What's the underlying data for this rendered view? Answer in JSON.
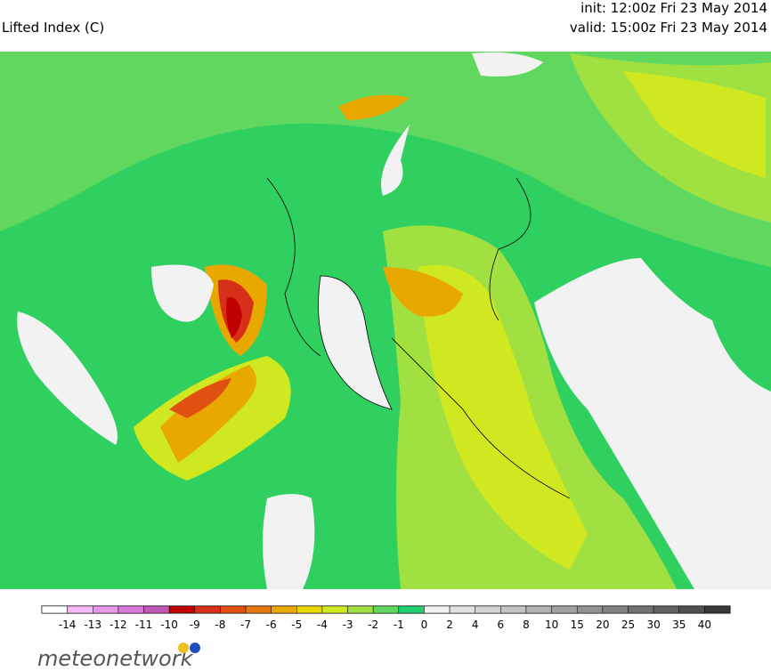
{
  "header": {
    "title": "Lifted Index (C)",
    "init": "init: 12:00z Fri 23 May 2014",
    "valid": "valid: 15:00z Fri 23 May 2014"
  },
  "legend": {
    "labels": [
      "-14",
      "-13",
      "-12",
      "-11",
      "-10",
      "-9",
      "-8",
      "-7",
      "-6",
      "-5",
      "-4",
      "-3",
      "-2",
      "-1",
      "0",
      "2",
      "4",
      "6",
      "8",
      "10",
      "15",
      "20",
      "25",
      "30",
      "35",
      "40"
    ],
    "colors": [
      "#ffffff",
      "#f8b8f8",
      "#e898e8",
      "#d878d8",
      "#c058b8",
      "#c00000",
      "#d83018",
      "#e05010",
      "#e87810",
      "#e8a800",
      "#e8d800",
      "#d0e820",
      "#a0e040",
      "#60d860",
      "#20d070",
      "#f2f2f2",
      "#e2e2e2",
      "#d2d2d2",
      "#c2c2c2",
      "#b2b2b2",
      "#a2a2a2",
      "#929292",
      "#828282",
      "#727272",
      "#626262",
      "#505050",
      "#383838"
    ]
  },
  "logo": {
    "text": "meteonetwork"
  }
}
